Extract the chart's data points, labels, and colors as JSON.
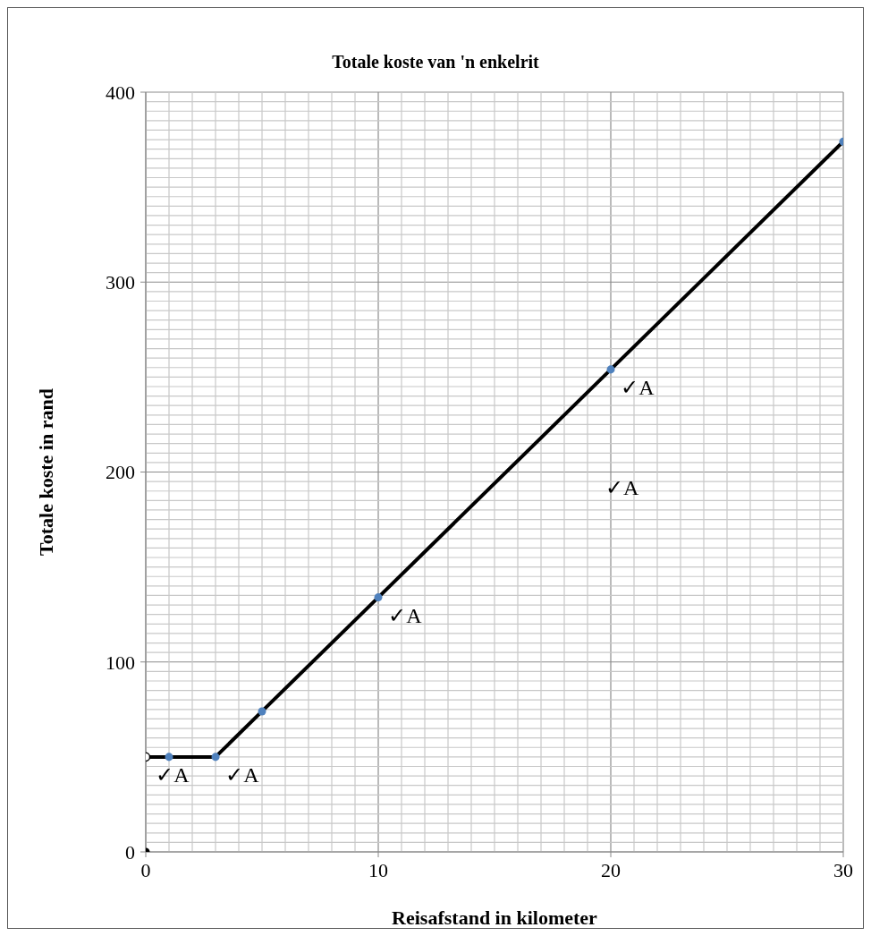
{
  "chart_data": {
    "type": "line",
    "title": "Totale koste van 'n enkelrit",
    "xlabel": "Reisafstand in kilometer",
    "ylabel": "Totale koste in rand",
    "xlim": [
      0,
      30
    ],
    "xticks": [
      0,
      10,
      20,
      30
    ],
    "ylim": [
      0,
      400
    ],
    "yticks": [
      0,
      100,
      200,
      300,
      400
    ],
    "grid": true,
    "legend": false,
    "series": [
      {
        "color": "#000000",
        "marker": "none",
        "x": [
          0,
          1,
          3,
          5,
          10,
          20,
          30
        ],
        "values": [
          50,
          50,
          50,
          74,
          134,
          254,
          374
        ]
      },
      {
        "type": "scatter",
        "color": "#4f81bd",
        "marker": "circle",
        "x": [
          1,
          3,
          5,
          10,
          20,
          30
        ],
        "values": [
          50,
          50,
          74,
          134,
          254,
          374
        ]
      },
      {
        "type": "scatter",
        "color": "#ffffff",
        "marker": "circle",
        "x": [
          0
        ],
        "values": [
          50
        ]
      },
      {
        "type": "scatter",
        "color": "#000000",
        "marker": "circle",
        "x": [
          0
        ],
        "values": [
          0
        ]
      }
    ],
    "annotations": [
      {
        "text": "✓A",
        "x": 0,
        "y": 50
      },
      {
        "text": "✓A",
        "x": 3,
        "y": 50
      },
      {
        "text": "✓A",
        "x": 10,
        "y": 134
      },
      {
        "text": "✓A",
        "x": 20,
        "y": 254
      },
      "✓A"
    ]
  }
}
